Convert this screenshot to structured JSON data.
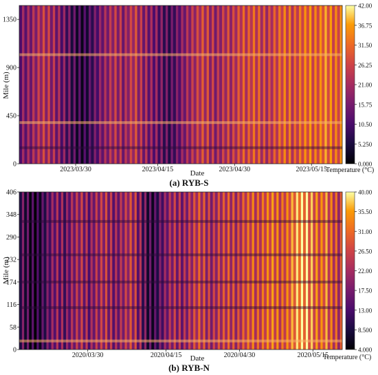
{
  "chart_data": [
    {
      "type": "heatmap",
      "title": "(a) RYB-S",
      "xlabel": "Date",
      "ylabel": "Mile (m)",
      "x_ticks": [
        "2023/03/30",
        "2023/04/15",
        "2023/04/30",
        "2023/05/15"
      ],
      "y_ticks": [
        "0",
        "450",
        "900",
        "1350"
      ],
      "ylim": [
        0,
        1480
      ],
      "colorbar": {
        "label": "Temperature (°C)",
        "ticks": [
          "0.000",
          "5.250",
          "10.50",
          "15.75",
          "21.00",
          "26.25",
          "31.50",
          "36.75",
          "42.00"
        ],
        "range": [
          0,
          42
        ]
      },
      "colormap": "inferno",
      "bands": {
        "date_start": "2023/03/19",
        "date_end": "2023/05/21",
        "period_days": 1,
        "mean_temperature": [
          16,
          17,
          19,
          21,
          23,
          22,
          20,
          18,
          15,
          13,
          10,
          8,
          7,
          9,
          12,
          15,
          18,
          20,
          22,
          21,
          19,
          22,
          24,
          21,
          19,
          17,
          16,
          14,
          12,
          11,
          13,
          16,
          19,
          21,
          23,
          25,
          24,
          22,
          20,
          22,
          24,
          23,
          25,
          27,
          26,
          28,
          27,
          25,
          24,
          26,
          28,
          30,
          29,
          27,
          29,
          31,
          32,
          30,
          31,
          33,
          32,
          30,
          31,
          32
        ]
      },
      "features": [
        {
          "name": "warm stripe",
          "mile": 1020
        },
        {
          "name": "warm stripe",
          "mile": 385
        },
        {
          "name": "cool stripe",
          "mile": 150
        }
      ]
    },
    {
      "type": "heatmap",
      "title": "(b) RYB-N",
      "xlabel": "Date",
      "ylabel": "Mile (m)",
      "x_ticks": [
        "2020/03/30",
        "2020/04/15",
        "2020/04/30",
        "2020/05/15"
      ],
      "y_ticks": [
        "0",
        "58",
        "116",
        "174",
        "232",
        "290",
        "348",
        "406"
      ],
      "ylim": [
        0,
        406
      ],
      "colorbar": {
        "label": "Temperature (°C)",
        "ticks": [
          "4.000",
          "8.500",
          "13.00",
          "17.50",
          "22.00",
          "26.50",
          "31.00",
          "35.50",
          "40.00"
        ],
        "range": [
          4,
          40
        ]
      },
      "colormap": "inferno",
      "bands": {
        "date_start": "2020/03/16",
        "date_end": "2020/05/21",
        "period_days": 1,
        "mean_temperature": [
          14,
          12,
          10,
          9,
          11,
          14,
          17,
          19,
          18,
          16,
          19,
          21,
          22,
          20,
          18,
          21,
          22,
          23,
          21,
          19,
          20,
          22,
          24,
          23,
          19,
          15,
          12,
          11,
          14,
          17,
          20,
          22,
          21,
          20,
          22,
          24,
          26,
          25,
          23,
          22,
          24,
          25,
          26,
          25,
          24,
          26,
          28,
          29,
          27,
          28,
          30,
          31,
          30,
          28,
          30,
          32,
          34,
          36,
          35,
          33,
          31,
          30,
          32,
          29,
          27,
          25,
          24
        ]
      },
      "features": [
        {
          "name": "dark stripe",
          "mile": 330
        },
        {
          "name": "dark stripe",
          "mile": 244
        },
        {
          "name": "dark stripe",
          "mile": 174
        },
        {
          "name": "dark stripe",
          "mile": 108
        },
        {
          "name": "warm stripe",
          "mile": 22
        }
      ]
    }
  ]
}
